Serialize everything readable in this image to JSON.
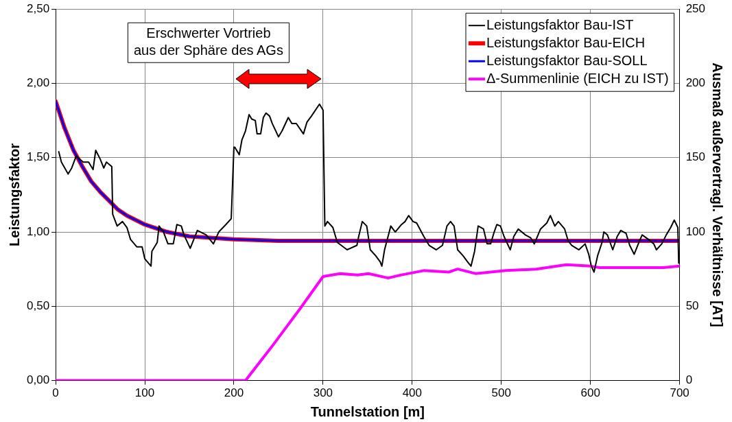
{
  "chart_data": {
    "type": "line",
    "xlabel": "Tunnelstation [m]",
    "ylabel": "Leistungsfaktor",
    "y2label": "Ausmaß außervertragl. Verhältnisse [AT]",
    "xlim": [
      0,
      700
    ],
    "xticks": [
      0,
      100,
      200,
      300,
      400,
      500,
      600,
      700
    ],
    "ylim": [
      0,
      2.5
    ],
    "yticks": [
      {
        "value": 0,
        "label": "0,00"
      },
      {
        "value": 0.5,
        "label": "0,50"
      },
      {
        "value": 1,
        "label": "1,00"
      },
      {
        "value": 1.5,
        "label": "1,50"
      },
      {
        "value": 2,
        "label": "2,00"
      },
      {
        "value": 2.5,
        "label": "2,50"
      }
    ],
    "y2lim": [
      0,
      250
    ],
    "y2ticks": [
      0,
      50,
      100,
      150,
      200,
      250
    ],
    "grid": true,
    "legend": "top right",
    "marker": "none",
    "line_style": "solid",
    "annotations": [
      "Erschwerter Vortrieb\naus der Sphäre des AGs"
    ],
    "series": [
      {
        "name": "Leistungsfaktor Bau-IST",
        "color": "#000000",
        "x": [
          3.5,
          6.5,
          14,
          18,
          23,
          31,
          37,
          42,
          45,
          50,
          54,
          57,
          63,
          64,
          69,
          75,
          80,
          84,
          91,
          97,
          100,
          107,
          108,
          114,
          116,
          121,
          126,
          132,
          136,
          141,
          144,
          151,
          159,
          169,
          177,
          183,
          191,
          197,
          200,
          201,
          206,
          209,
          213,
          217,
          220,
          224,
          226,
          230,
          233,
          236,
          240,
          243,
          250,
          254,
          261,
          265,
          270,
          278,
          282,
          287,
          296,
          300,
          302,
          305,
          311,
          316,
          327,
          338,
          340,
          344,
          349,
          353,
          359,
          364,
          366,
          369,
          376,
          381,
          388,
          392,
          396,
          401,
          405,
          413,
          419,
          427,
          434,
          439,
          443,
          447,
          451,
          457,
          462,
          466,
          470,
          474,
          480,
          484,
          488,
          492,
          495,
          499,
          503,
          510,
          514,
          519,
          527,
          533,
          537,
          544,
          551,
          555,
          560,
          564,
          571,
          575,
          579,
          587,
          594,
          598,
          601,
          604,
          608,
          613,
          615,
          619,
          625,
          630,
          634,
          640,
          644,
          649,
          655,
          658,
          665,
          671,
          674,
          680,
          685,
          690,
          694,
          698,
          699
        ],
        "values": [
          1.54,
          1.47,
          1.39,
          1.43,
          1.51,
          1.47,
          1.47,
          1.42,
          1.55,
          1.49,
          1.43,
          1.47,
          1.44,
          1.12,
          1.04,
          1.07,
          1.03,
          0.95,
          0.9,
          0.9,
          0.82,
          0.77,
          0.87,
          0.93,
          1.04,
          1.0,
          0.92,
          0.92,
          1.05,
          1.04,
          0.98,
          0.89,
          1.01,
          0.98,
          0.92,
          1.0,
          1.05,
          1.09,
          1.57,
          1.57,
          1.52,
          1.62,
          1.68,
          1.79,
          1.76,
          1.75,
          1.66,
          1.66,
          1.77,
          1.8,
          1.78,
          1.73,
          1.64,
          1.68,
          1.77,
          1.73,
          1.73,
          1.66,
          1.74,
          1.78,
          1.86,
          1.82,
          1.04,
          1.07,
          1.03,
          0.93,
          0.88,
          0.91,
          0.97,
          1.07,
          1.04,
          0.88,
          0.84,
          0.8,
          0.77,
          0.88,
          1.04,
          1.0,
          1.05,
          1.07,
          1.11,
          1.07,
          1.06,
          0.97,
          0.91,
          0.88,
          0.91,
          1.04,
          1.07,
          1.04,
          0.88,
          0.84,
          0.8,
          0.77,
          0.87,
          1.04,
          1.02,
          0.92,
          0.92,
          1.0,
          1.05,
          1.04,
          0.97,
          0.88,
          0.97,
          1.02,
          0.98,
          0.96,
          0.92,
          1.02,
          1.06,
          1.11,
          1.04,
          1.07,
          1.02,
          0.94,
          0.91,
          0.88,
          0.92,
          0.85,
          0.77,
          0.73,
          0.84,
          0.93,
          1.0,
          0.98,
          0.88,
          0.97,
          1.01,
          0.99,
          0.91,
          0.85,
          0.94,
          0.98,
          0.95,
          0.92,
          0.88,
          0.92,
          0.98,
          1.03,
          1.08,
          1.03,
          0.79
        ]
      },
      {
        "name": "Leistungsfaktor Bau-EICH",
        "color": "#ff0000",
        "x": [
          0,
          10,
          20,
          30,
          40,
          50,
          60,
          70,
          80,
          100,
          125,
          150,
          200,
          250,
          300,
          700
        ],
        "values": [
          1.88,
          1.7,
          1.55,
          1.44,
          1.34,
          1.27,
          1.21,
          1.15,
          1.11,
          1.05,
          1.0,
          0.97,
          0.95,
          0.94,
          0.94,
          0.94
        ]
      },
      {
        "name": "Leistungsfaktor Bau-SOLL",
        "color": "#0000ff",
        "x": [
          0,
          10,
          20,
          30,
          40,
          50,
          60,
          70,
          80,
          100,
          125,
          150,
          200,
          250,
          300,
          700
        ],
        "values": [
          1.88,
          1.7,
          1.55,
          1.44,
          1.34,
          1.27,
          1.21,
          1.15,
          1.11,
          1.05,
          1.0,
          0.97,
          0.95,
          0.94,
          0.94,
          0.94
        ]
      },
      {
        "name": "Δ-Summenlinie (EICH zu IST)",
        "color": "#ff00ff",
        "axis": "y2",
        "x": [
          0,
          213,
          244,
          275,
          300,
          319,
          339,
          351,
          373,
          387,
          413,
          441,
          451,
          471,
          488,
          505,
          539,
          573,
          600,
          610,
          641,
          682,
          700
        ],
        "values": [
          0,
          0,
          24,
          49,
          70,
          72,
          71,
          72,
          69,
          71,
          74,
          73,
          75,
          72,
          73,
          74,
          75,
          78,
          77,
          76,
          76,
          76,
          77
        ]
      }
    ]
  }
}
